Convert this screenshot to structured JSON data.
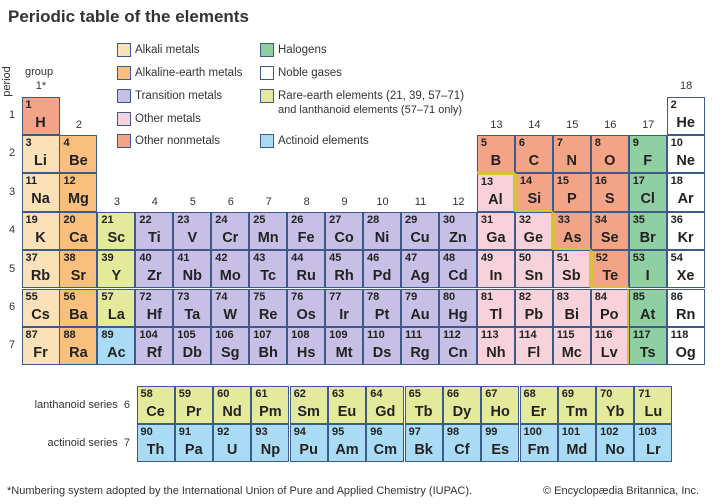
{
  "title": "Periodic table of the elements",
  "colors": {
    "alkali": "#fbe1b8",
    "alkaline": "#f8c07c",
    "transition": "#c8bfe7",
    "other-metal": "#f8d2da",
    "other-nonmetal": "#f4a486",
    "halogen": "#8fcfa2",
    "noble": "#ffffff",
    "rare-earth": "#e4ea9c",
    "actinoid": "#a9dcf4",
    "border": "#3c5a8a",
    "metal-nonmetal-line": "#d8c23a"
  },
  "legend": [
    {
      "key": "alkali",
      "label": "Alkali metals"
    },
    {
      "key": "alkaline",
      "label": "Alkaline-earth metals"
    },
    {
      "key": "transition",
      "label": "Transition metals"
    },
    {
      "key": "other-metal",
      "label": "Other metals"
    },
    {
      "key": "other-nonmetal",
      "label": "Other nonmetals"
    },
    {
      "key": "halogen",
      "label": "Halogens"
    },
    {
      "key": "noble",
      "label": "Noble gases"
    },
    {
      "key": "rare-earth",
      "label": "Rare-earth elements (21, 39, 57–71)",
      "label2": "and lanthanoid elements (57–71 only)"
    },
    {
      "key": "actinoid",
      "label": "Actinoid elements"
    }
  ],
  "axis": {
    "period_label": "period",
    "group_label": "group",
    "groups": [
      "1*",
      "2",
      "3",
      "4",
      "5",
      "6",
      "7",
      "8",
      "9",
      "10",
      "11",
      "12",
      "13",
      "14",
      "15",
      "16",
      "17",
      "18"
    ],
    "periods": [
      "1",
      "2",
      "3",
      "4",
      "5",
      "6",
      "7"
    ]
  },
  "series_labels": {
    "lanthanoid": "lanthanoid series  6",
    "actinoid": "actinoid series  7"
  },
  "elements": [
    [
      1,
      "H",
      "other-nonmetal",
      1,
      1
    ],
    [
      2,
      "He",
      "noble",
      1,
      18
    ],
    [
      3,
      "Li",
      "alkali",
      2,
      1
    ],
    [
      4,
      "Be",
      "alkaline",
      2,
      2
    ],
    [
      5,
      "B",
      "other-nonmetal",
      2,
      13
    ],
    [
      6,
      "C",
      "other-nonmetal",
      2,
      14
    ],
    [
      7,
      "N",
      "other-nonmetal",
      2,
      15
    ],
    [
      8,
      "O",
      "other-nonmetal",
      2,
      16
    ],
    [
      9,
      "F",
      "halogen",
      2,
      17
    ],
    [
      10,
      "Ne",
      "noble",
      2,
      18
    ],
    [
      11,
      "Na",
      "alkali",
      3,
      1
    ],
    [
      12,
      "Mg",
      "alkaline",
      3,
      2
    ],
    [
      13,
      "Al",
      "other-metal",
      3,
      13
    ],
    [
      14,
      "Si",
      "other-nonmetal",
      3,
      14
    ],
    [
      15,
      "P",
      "other-nonmetal",
      3,
      15
    ],
    [
      16,
      "S",
      "other-nonmetal",
      3,
      16
    ],
    [
      17,
      "Cl",
      "halogen",
      3,
      17
    ],
    [
      18,
      "Ar",
      "noble",
      3,
      18
    ],
    [
      19,
      "K",
      "alkali",
      4,
      1
    ],
    [
      20,
      "Ca",
      "alkaline",
      4,
      2
    ],
    [
      21,
      "Sc",
      "rare-earth",
      4,
      3
    ],
    [
      22,
      "Ti",
      "transition",
      4,
      4
    ],
    [
      23,
      "V",
      "transition",
      4,
      5
    ],
    [
      24,
      "Cr",
      "transition",
      4,
      6
    ],
    [
      25,
      "Mn",
      "transition",
      4,
      7
    ],
    [
      26,
      "Fe",
      "transition",
      4,
      8
    ],
    [
      27,
      "Co",
      "transition",
      4,
      9
    ],
    [
      28,
      "Ni",
      "transition",
      4,
      10
    ],
    [
      29,
      "Cu",
      "transition",
      4,
      11
    ],
    [
      30,
      "Zn",
      "transition",
      4,
      12
    ],
    [
      31,
      "Ga",
      "other-metal",
      4,
      13
    ],
    [
      32,
      "Ge",
      "other-metal",
      4,
      14
    ],
    [
      33,
      "As",
      "other-nonmetal",
      4,
      15
    ],
    [
      34,
      "Se",
      "other-nonmetal",
      4,
      16
    ],
    [
      35,
      "Br",
      "halogen",
      4,
      17
    ],
    [
      36,
      "Kr",
      "noble",
      4,
      18
    ],
    [
      37,
      "Rb",
      "alkali",
      5,
      1
    ],
    [
      38,
      "Sr",
      "alkaline",
      5,
      2
    ],
    [
      39,
      "Y",
      "rare-earth",
      5,
      3
    ],
    [
      40,
      "Zr",
      "transition",
      5,
      4
    ],
    [
      41,
      "Nb",
      "transition",
      5,
      5
    ],
    [
      42,
      "Mo",
      "transition",
      5,
      6
    ],
    [
      43,
      "Tc",
      "transition",
      5,
      7
    ],
    [
      44,
      "Ru",
      "transition",
      5,
      8
    ],
    [
      45,
      "Rh",
      "transition",
      5,
      9
    ],
    [
      46,
      "Pd",
      "transition",
      5,
      10
    ],
    [
      47,
      "Ag",
      "transition",
      5,
      11
    ],
    [
      48,
      "Cd",
      "transition",
      5,
      12
    ],
    [
      49,
      "In",
      "other-metal",
      5,
      13
    ],
    [
      50,
      "Sn",
      "other-metal",
      5,
      14
    ],
    [
      51,
      "Sb",
      "other-metal",
      5,
      15
    ],
    [
      52,
      "Te",
      "other-nonmetal",
      5,
      16
    ],
    [
      53,
      "I",
      "halogen",
      5,
      17
    ],
    [
      54,
      "Xe",
      "noble",
      5,
      18
    ],
    [
      55,
      "Cs",
      "alkali",
      6,
      1
    ],
    [
      56,
      "Ba",
      "alkaline",
      6,
      2
    ],
    [
      57,
      "La",
      "rare-earth",
      6,
      3
    ],
    [
      72,
      "Hf",
      "transition",
      6,
      4
    ],
    [
      73,
      "Ta",
      "transition",
      6,
      5
    ],
    [
      74,
      "W",
      "transition",
      6,
      6
    ],
    [
      75,
      "Re",
      "transition",
      6,
      7
    ],
    [
      76,
      "Os",
      "transition",
      6,
      8
    ],
    [
      77,
      "Ir",
      "transition",
      6,
      9
    ],
    [
      78,
      "Pt",
      "transition",
      6,
      10
    ],
    [
      79,
      "Au",
      "transition",
      6,
      11
    ],
    [
      80,
      "Hg",
      "transition",
      6,
      12
    ],
    [
      81,
      "Tl",
      "other-metal",
      6,
      13
    ],
    [
      82,
      "Pb",
      "other-metal",
      6,
      14
    ],
    [
      83,
      "Bi",
      "other-metal",
      6,
      15
    ],
    [
      84,
      "Po",
      "other-metal",
      6,
      16
    ],
    [
      85,
      "At",
      "halogen",
      6,
      17
    ],
    [
      86,
      "Rn",
      "noble",
      6,
      18
    ],
    [
      87,
      "Fr",
      "alkali",
      7,
      1
    ],
    [
      88,
      "Ra",
      "alkaline",
      7,
      2
    ],
    [
      89,
      "Ac",
      "actinoid",
      7,
      3
    ],
    [
      104,
      "Rf",
      "transition",
      7,
      4
    ],
    [
      105,
      "Db",
      "transition",
      7,
      5
    ],
    [
      106,
      "Sg",
      "transition",
      7,
      6
    ],
    [
      107,
      "Bh",
      "transition",
      7,
      7
    ],
    [
      108,
      "Hs",
      "transition",
      7,
      8
    ],
    [
      109,
      "Mt",
      "transition",
      7,
      9
    ],
    [
      110,
      "Ds",
      "transition",
      7,
      10
    ],
    [
      111,
      "Rg",
      "transition",
      7,
      11
    ],
    [
      112,
      "Cn",
      "transition",
      7,
      12
    ],
    [
      113,
      "Nh",
      "other-metal",
      7,
      13
    ],
    [
      114,
      "Fl",
      "other-metal",
      7,
      14
    ],
    [
      115,
      "Mc",
      "other-metal",
      7,
      15
    ],
    [
      116,
      "Lv",
      "other-metal",
      7,
      16
    ],
    [
      117,
      "Ts",
      "halogen",
      7,
      17
    ],
    [
      118,
      "Og",
      "noble",
      7,
      18
    ]
  ],
  "lanthanoids": [
    [
      58,
      "Ce"
    ],
    [
      59,
      "Pr"
    ],
    [
      60,
      "Nd"
    ],
    [
      61,
      "Pm"
    ],
    [
      62,
      "Sm"
    ],
    [
      63,
      "Eu"
    ],
    [
      64,
      "Gd"
    ],
    [
      65,
      "Tb"
    ],
    [
      66,
      "Dy"
    ],
    [
      67,
      "Ho"
    ],
    [
      68,
      "Er"
    ],
    [
      69,
      "Tm"
    ],
    [
      70,
      "Yb"
    ],
    [
      71,
      "Lu"
    ]
  ],
  "actinoids": [
    [
      90,
      "Th"
    ],
    [
      91,
      "Pa"
    ],
    [
      92,
      "U"
    ],
    [
      93,
      "Np"
    ],
    [
      94,
      "Pu"
    ],
    [
      95,
      "Am"
    ],
    [
      96,
      "Cm"
    ],
    [
      97,
      "Bk"
    ],
    [
      98,
      "Cf"
    ],
    [
      99,
      "Es"
    ],
    [
      100,
      "Fm"
    ],
    [
      101,
      "Md"
    ],
    [
      102,
      "No"
    ],
    [
      103,
      "Lr"
    ]
  ],
  "footnote": "*Numbering system adopted by the International Union of Pure and Applied Chemistry (IUPAC).",
  "copyright": "© Encyclopædia Britannica, Inc."
}
